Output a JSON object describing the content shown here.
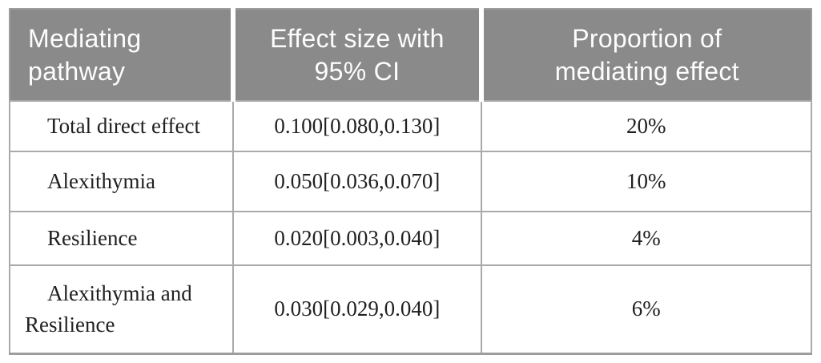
{
  "table": {
    "columns": [
      {
        "label": "Mediating pathway"
      },
      {
        "label": "Effect size with 95% CI"
      },
      {
        "label": "Proportion of mediating effect"
      }
    ],
    "rows": [
      {
        "pathway": "Total direct effect",
        "effect_size": "0.100[0.080,0.130]",
        "proportion": "20%"
      },
      {
        "pathway": "Alexithymia",
        "effect_size": "0.050[0.036,0.070]",
        "proportion": "10%"
      },
      {
        "pathway": "Resilience",
        "effect_size": "0.020[0.003,0.040]",
        "proportion": "4%"
      },
      {
        "pathway": "Alexithymia and Resilience",
        "effect_size": "0.030[0.029,0.040]",
        "proportion": "6%"
      }
    ]
  },
  "colors": {
    "header_bg": "#8a8a8a",
    "header_text": "#fdfdfd",
    "outer_border": "#9d9d9d",
    "grid_border": "#aaaaaa",
    "body_text": "#212121"
  }
}
